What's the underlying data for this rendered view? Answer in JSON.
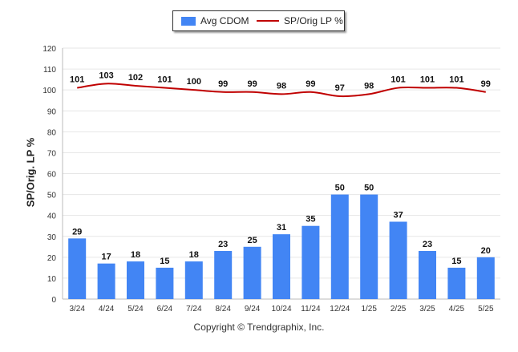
{
  "chart_data": {
    "type": "bar",
    "categories": [
      "3/24",
      "4/24",
      "5/24",
      "6/24",
      "7/24",
      "8/24",
      "9/24",
      "10/24",
      "11/24",
      "12/24",
      "1/25",
      "2/25",
      "3/25",
      "4/25",
      "5/25"
    ],
    "series": [
      {
        "name": "Avg CDOM",
        "type": "bar",
        "color": "#4285f4",
        "values": [
          29,
          17,
          18,
          15,
          18,
          23,
          25,
          31,
          35,
          50,
          50,
          37,
          23,
          15,
          20
        ]
      },
      {
        "name": "SP/Orig LP %",
        "type": "line",
        "color": "#c00000",
        "values": [
          101,
          103,
          102,
          101,
          100,
          99,
          99,
          98,
          99,
          97,
          98,
          101,
          101,
          101,
          99
        ]
      }
    ],
    "ylabel": "SP/Orig. LP %",
    "ylim": [
      0,
      120
    ],
    "yticks": [
      0,
      10,
      20,
      30,
      40,
      50,
      60,
      70,
      80,
      90,
      100,
      110,
      120
    ],
    "grid": true,
    "legend_position": "top-center"
  },
  "legend": {
    "bar_label": "Avg CDOM",
    "line_label": "SP/Orig LP %"
  },
  "footer": {
    "copyright": "Copyright © Trendgraphix, Inc."
  }
}
